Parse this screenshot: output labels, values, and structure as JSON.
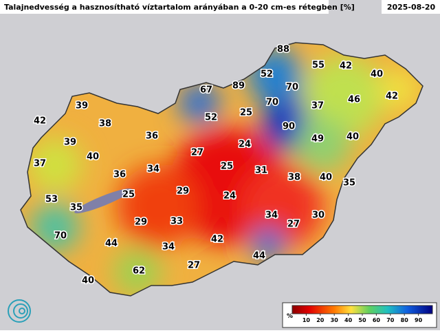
{
  "header": {
    "title": "Talajnedvesség a hasznosítható víztartalom arányában a 0-20 cm-es rétegben [%]",
    "date": "2025-08-20"
  },
  "stations": [
    {
      "value": 88
    },
    {
      "value": 55
    },
    {
      "value": 42
    },
    {
      "value": 40
    },
    {
      "value": 52
    },
    {
      "value": 67
    },
    {
      "value": 89
    },
    {
      "value": 70
    },
    {
      "value": 42
    },
    {
      "value": 46
    },
    {
      "value": 70
    },
    {
      "value": 37
    },
    {
      "value": 25
    },
    {
      "value": 39
    },
    {
      "value": 52
    },
    {
      "value": 90
    },
    {
      "value": 42
    },
    {
      "value": 38
    },
    {
      "value": 36
    },
    {
      "value": 49
    },
    {
      "value": 40
    },
    {
      "value": 39
    },
    {
      "value": 27
    },
    {
      "value": 24
    },
    {
      "value": 40
    },
    {
      "value": 37
    },
    {
      "value": 25
    },
    {
      "value": 31
    },
    {
      "value": 34
    },
    {
      "value": 36
    },
    {
      "value": 38
    },
    {
      "value": 40
    },
    {
      "value": 35
    },
    {
      "value": 29
    },
    {
      "value": 25
    },
    {
      "value": 24
    },
    {
      "value": 53
    },
    {
      "value": 35
    },
    {
      "value": 34
    },
    {
      "value": 27
    },
    {
      "value": 30
    },
    {
      "value": 29
    },
    {
      "value": 33
    },
    {
      "value": 70
    },
    {
      "value": 44
    },
    {
      "value": 42
    },
    {
      "value": 34
    },
    {
      "value": 44
    },
    {
      "value": 27
    },
    {
      "value": 62
    },
    {
      "value": 40
    }
  ],
  "colorbar": {
    "unit": "%",
    "ticks": [
      10,
      20,
      30,
      40,
      50,
      60,
      70,
      80,
      90
    ]
  }
}
